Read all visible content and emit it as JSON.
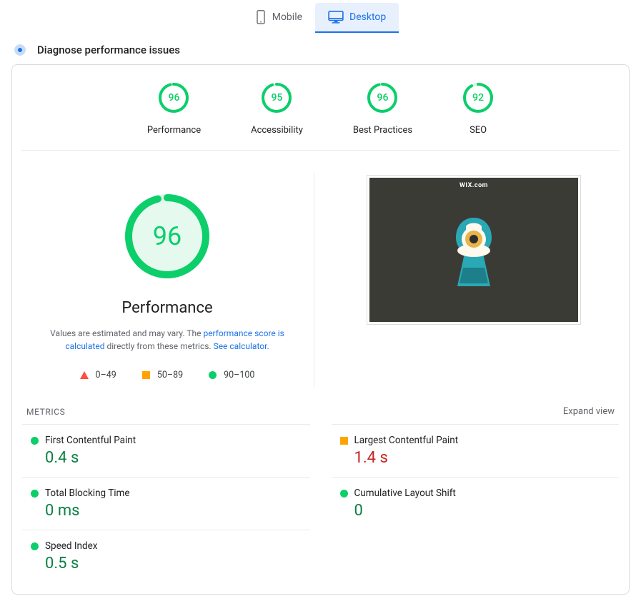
{
  "tabs": {
    "mobile": "Mobile",
    "desktop": "Desktop",
    "active": "desktop"
  },
  "section_title": "Diagnose performance issues",
  "gauge_colors": {
    "good": "#0cce6b",
    "track": "#d9f5e4",
    "big_fill": "#e6f9ee"
  },
  "summary_gauges": [
    {
      "score": 96,
      "label": "Performance"
    },
    {
      "score": 95,
      "label": "Accessibility"
    },
    {
      "score": 96,
      "label": "Best Practices"
    },
    {
      "score": 92,
      "label": "SEO"
    }
  ],
  "big_gauge": {
    "score": 96,
    "label": "Performance"
  },
  "desc_text_a": "Values are estimated and may vary. The ",
  "desc_link_a": "performance score is calculated",
  "desc_text_b": " directly from these metrics. ",
  "desc_link_b": "See calculator.",
  "legend": {
    "bad": "0–49",
    "mid": "50–89",
    "good": "90–100"
  },
  "screenshot": {
    "brand": "WIX.com"
  },
  "metrics_label": "METRICS",
  "expand_label": "Expand view",
  "metrics": {
    "fcp": {
      "name": "First Contentful Paint",
      "value": "0.4 s",
      "status": "good"
    },
    "lcp": {
      "name": "Largest Contentful Paint",
      "value": "1.4 s",
      "status": "mid"
    },
    "tbt": {
      "name": "Total Blocking Time",
      "value": "0 ms",
      "status": "good"
    },
    "cls": {
      "name": "Cumulative Layout Shift",
      "value": "0",
      "status": "good"
    },
    "si": {
      "name": "Speed Index",
      "value": "0.5 s",
      "status": "good"
    }
  },
  "status_colors": {
    "good_dot": "#0cce6b",
    "mid_sq": "#ffa400",
    "val_good": "#0b8043",
    "val_mid": "#c5221f"
  }
}
